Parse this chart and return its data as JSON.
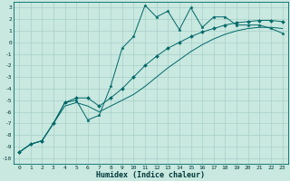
{
  "xlabel": "Humidex (Indice chaleur)",
  "xlim": [
    -0.5,
    23.5
  ],
  "ylim": [
    -10.5,
    3.5
  ],
  "bg_color": "#c8e8e0",
  "grid_color": "#a8d0c8",
  "line_color": "#006868",
  "series": [
    {
      "x": [
        0,
        1,
        2,
        3,
        4,
        5,
        6,
        7,
        8,
        9,
        10,
        11,
        12,
        13,
        14,
        15,
        16,
        17,
        18,
        19,
        20,
        21,
        22,
        23
      ],
      "y": [
        -9.5,
        -8.8,
        -8.5,
        -7.0,
        -5.2,
        -5.0,
        -6.7,
        -6.3,
        -3.8,
        -0.5,
        0.5,
        3.2,
        2.2,
        2.7,
        1.1,
        3.0,
        1.3,
        2.2,
        2.2,
        1.5,
        1.5,
        1.5,
        1.2,
        0.8
      ],
      "marker": "*",
      "markersize": 2.5,
      "linewidth": 0.7
    },
    {
      "x": [
        0,
        1,
        2,
        3,
        4,
        5,
        6,
        7,
        8,
        9,
        10,
        11,
        12,
        13,
        14,
        15,
        16,
        17,
        18,
        19,
        20,
        21,
        22,
        23
      ],
      "y": [
        -9.5,
        -8.8,
        -8.5,
        -7.0,
        -5.2,
        -4.8,
        -4.8,
        -5.5,
        -4.8,
        -4.0,
        -3.0,
        -2.0,
        -1.2,
        -0.5,
        0.0,
        0.5,
        0.9,
        1.2,
        1.5,
        1.7,
        1.8,
        1.9,
        1.9,
        1.8
      ],
      "marker": "D",
      "markersize": 2.0,
      "linewidth": 0.7
    },
    {
      "x": [
        0,
        1,
        2,
        3,
        4,
        5,
        6,
        7,
        8,
        9,
        10,
        11,
        12,
        13,
        14,
        15,
        16,
        17,
        18,
        19,
        20,
        21,
        22,
        23
      ],
      "y": [
        -9.5,
        -8.8,
        -8.5,
        -7.0,
        -5.5,
        -5.2,
        -5.5,
        -6.0,
        -5.5,
        -5.0,
        -4.5,
        -3.8,
        -3.0,
        -2.2,
        -1.5,
        -0.8,
        -0.2,
        0.3,
        0.7,
        1.0,
        1.2,
        1.3,
        1.3,
        1.2
      ],
      "marker": null,
      "markersize": 0,
      "linewidth": 0.7
    }
  ],
  "yticks": [
    -10,
    -9,
    -8,
    -7,
    -6,
    -5,
    -4,
    -3,
    -2,
    -1,
    0,
    1,
    2,
    3
  ],
  "xticks": [
    0,
    1,
    2,
    3,
    4,
    5,
    6,
    7,
    8,
    9,
    10,
    11,
    12,
    13,
    14,
    15,
    16,
    17,
    18,
    19,
    20,
    21,
    22,
    23
  ],
  "tick_fontsize": 4.5,
  "xlabel_fontsize": 6.0
}
